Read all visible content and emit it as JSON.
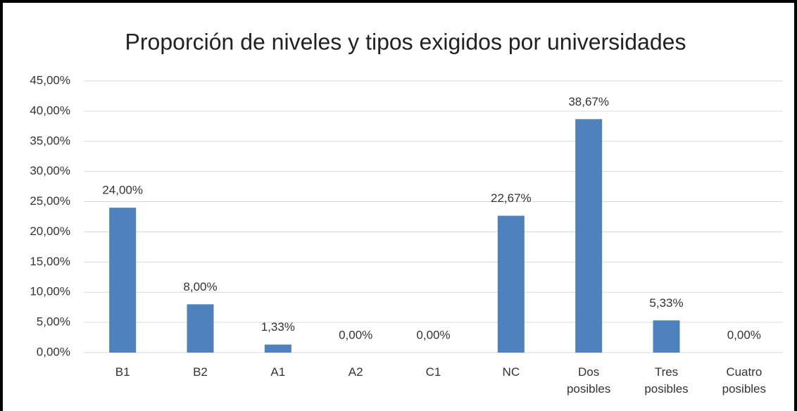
{
  "chart_data": {
    "type": "bar",
    "title": "Proporción de niveles y tipos exigidos por universidades",
    "categories": [
      "B1",
      "B2",
      "A1",
      "A2",
      "C1",
      "NC",
      "Dos posibles",
      "Tres posibles",
      "Cuatro posibles"
    ],
    "values": [
      24,
      8,
      1.33,
      0,
      0,
      22.67,
      38.67,
      5.33,
      0
    ],
    "value_labels": [
      "24,00%",
      "8,00%",
      "1,33%",
      "0,00%",
      "0,00%",
      "22,67%",
      "38,67%",
      "5,33%",
      "0,00%"
    ],
    "color": "#4f81bd",
    "ylim": [
      0,
      45
    ],
    "yticks": [
      {
        "value": 0,
        "label": "0,00%"
      },
      {
        "value": 5,
        "label": "5,00%"
      },
      {
        "value": 10,
        "label": "10,00%"
      },
      {
        "value": 15,
        "label": "15,00%"
      },
      {
        "value": 20,
        "label": "20,00%"
      },
      {
        "value": 25,
        "label": "25,00%"
      },
      {
        "value": 30,
        "label": "30,00%"
      },
      {
        "value": 35,
        "label": "35,00%"
      },
      {
        "value": 40,
        "label": "40,00%"
      },
      {
        "value": 45,
        "label": "45,00%"
      }
    ],
    "grid": true
  }
}
